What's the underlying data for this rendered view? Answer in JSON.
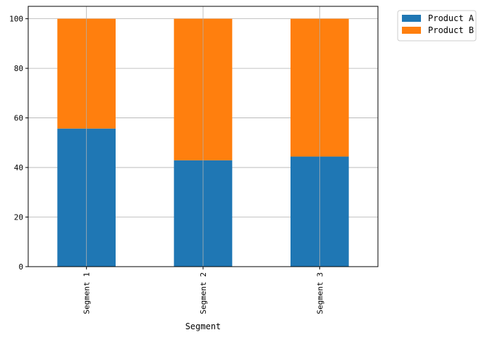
{
  "chart_data": {
    "type": "bar",
    "stacked": true,
    "categories": [
      "Segment 1",
      "Segment 2",
      "Segment 3"
    ],
    "series": [
      {
        "name": "Product A",
        "values": [
          55.7,
          42.9,
          44.4
        ],
        "color": "#1f77b4"
      },
      {
        "name": "Product B",
        "values": [
          44.3,
          57.1,
          55.6
        ],
        "color": "#ff7f0e"
      }
    ],
    "title": "",
    "xlabel": "Segment",
    "ylabel": "",
    "ylim": [
      0,
      105
    ],
    "yticks": [
      0,
      20,
      40,
      60,
      80,
      100
    ],
    "grid": true,
    "legend_position": "outside-top-right",
    "colors": {
      "grid": "#b0b0b0",
      "axis": "#000000"
    }
  }
}
